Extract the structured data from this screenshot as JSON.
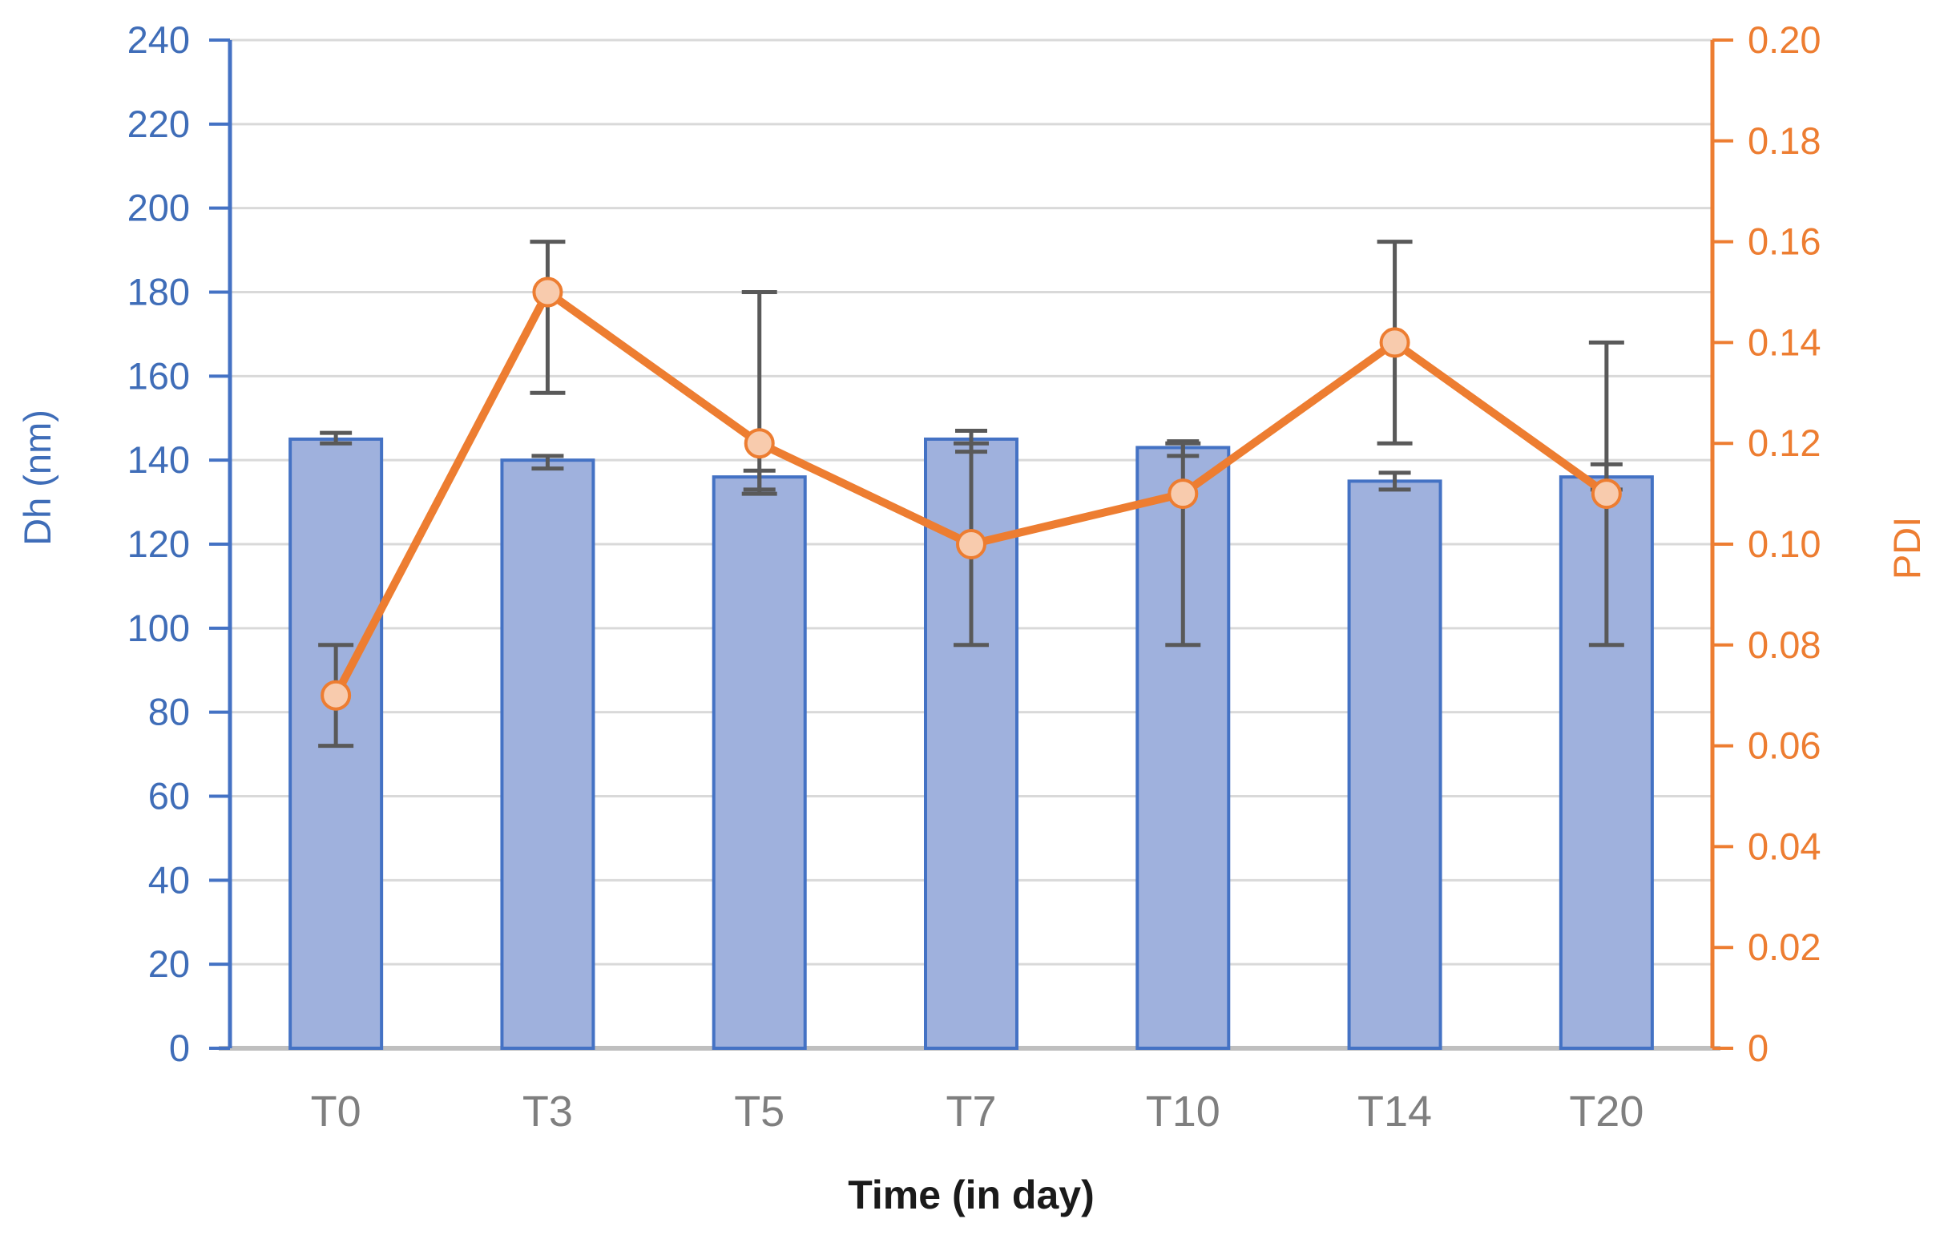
{
  "chart_data": {
    "type": "combo-bar-line",
    "title": "",
    "xlabel": "Time (in day)",
    "ylabel_left": "Dh (nm)",
    "ylabel_right": "PDI",
    "categories": [
      "T0",
      "T3",
      "T5",
      "T7",
      "T10",
      "T14",
      "T20"
    ],
    "series": [
      {
        "name": "Dh (nm)",
        "type": "bar",
        "axis": "left",
        "values": [
          145,
          140,
          136,
          145,
          143,
          135,
          136
        ],
        "error_hi": [
          146.5,
          141,
          137.5,
          147,
          144.5,
          137,
          139
        ],
        "error_lo": [
          144,
          138,
          133,
          142,
          141,
          133,
          133
        ]
      },
      {
        "name": "PDI",
        "type": "line",
        "axis": "right",
        "values": [
          0.07,
          0.15,
          0.12,
          0.1,
          0.11,
          0.14,
          0.11
        ],
        "error_hi": [
          0.08,
          0.16,
          0.15,
          0.12,
          0.12,
          0.16,
          0.14
        ],
        "error_lo": [
          0.06,
          0.13,
          0.11,
          0.08,
          0.08,
          0.12,
          0.08
        ]
      }
    ],
    "left_axis": {
      "min": 0,
      "max": 240,
      "step": 20,
      "tick_labels": [
        "0",
        "20",
        "40",
        "60",
        "80",
        "100",
        "120",
        "140",
        "160",
        "180",
        "200",
        "220",
        "240"
      ]
    },
    "right_axis": {
      "min": 0,
      "max": 0.2,
      "step": 0.02,
      "tick_labels": [
        "0",
        "0.02",
        "0.04",
        "0.06",
        "0.08",
        "0.10",
        "0.12",
        "0.14",
        "0.16",
        "0.18",
        "0.20"
      ]
    },
    "grid": true,
    "legend": "none",
    "colors": {
      "bar_fill": "#9FB1DD",
      "bar_border": "#4472C4",
      "left_axis_color": "#4472C4",
      "left_text_color": "#3f6db8",
      "line_color": "#ED7D31",
      "marker_fill": "#F8CBAD",
      "marker_border": "#ED7D31",
      "error_bar_color": "#595959",
      "gridline_color": "#D9D9D9",
      "baseline_color": "#BFBFBF",
      "x_label_color": "#7f7f7f",
      "x_title_color": "#1a1a1a"
    }
  }
}
